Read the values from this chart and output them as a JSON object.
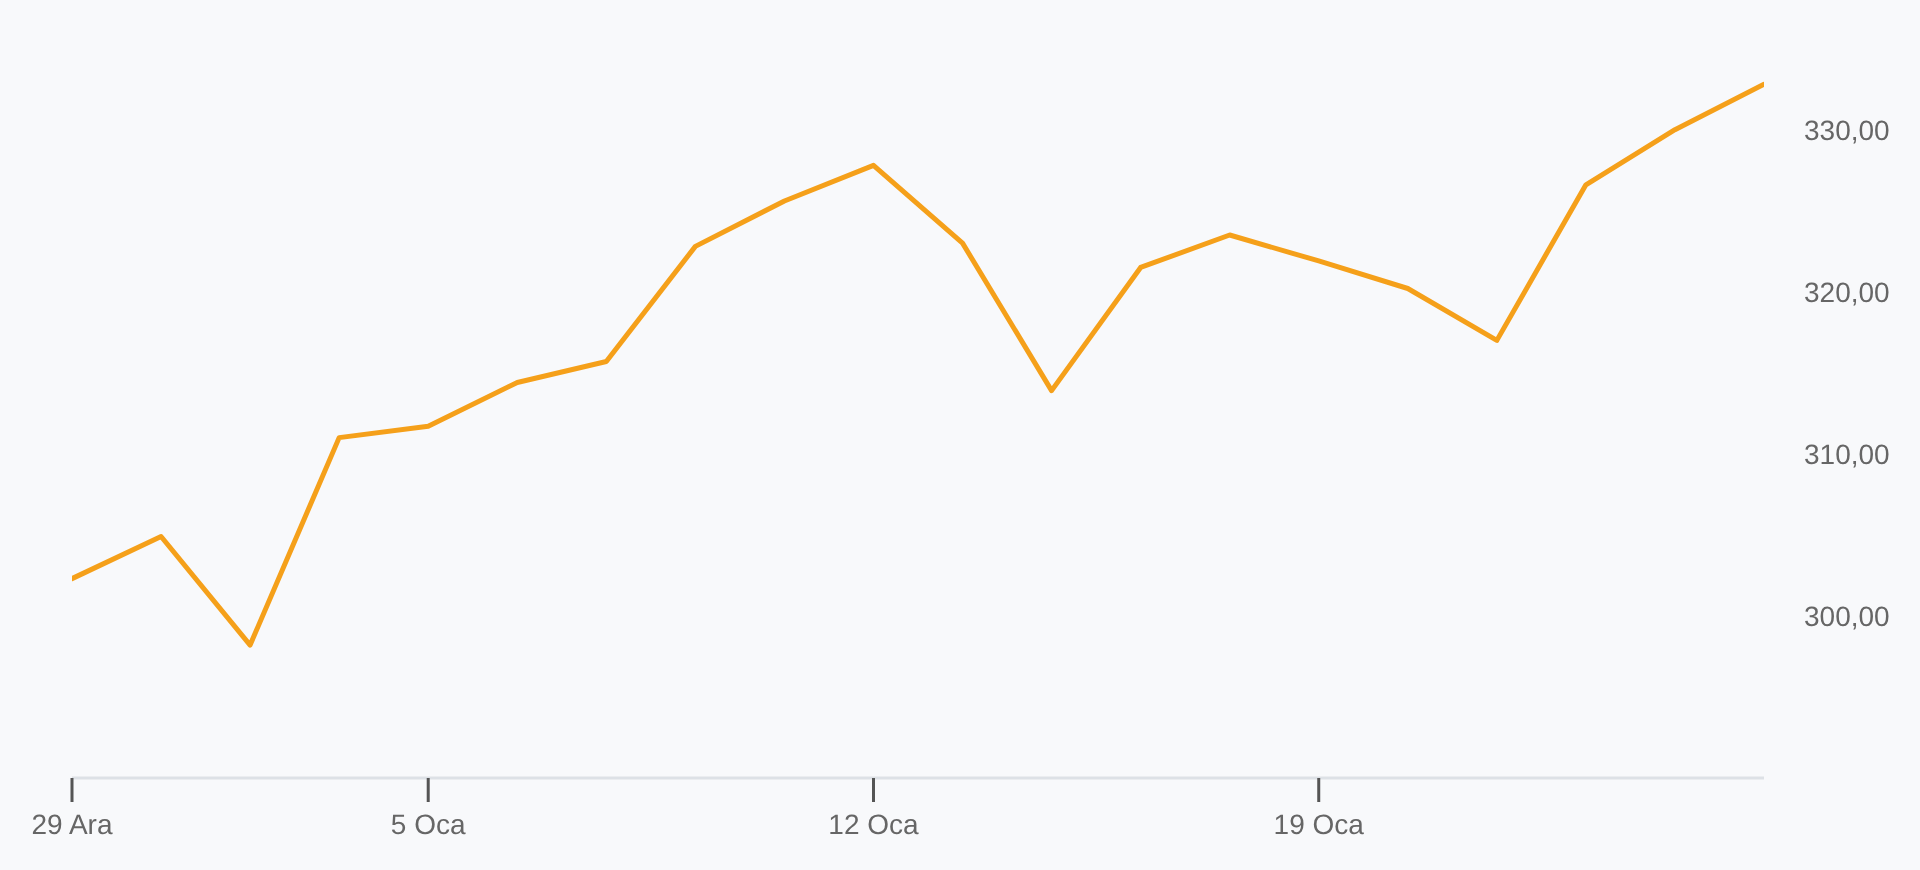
{
  "chart_data": {
    "type": "line",
    "categories": [
      "29 Ara",
      null,
      null,
      null,
      "5 Oca",
      null,
      null,
      null,
      null,
      "12 Oca",
      null,
      null,
      null,
      null,
      "19 Oca",
      null,
      null,
      null,
      null,
      null
    ],
    "series": [
      {
        "color": "#f5a01a",
        "values": [
          302.3,
          304.9,
          298.2,
          311.0,
          311.7,
          314.4,
          315.7,
          322.8,
          325.6,
          327.8,
          323.0,
          313.9,
          321.5,
          323.5,
          321.9,
          320.2,
          317.0,
          326.6,
          330.0,
          332.8
        ]
      }
    ],
    "ylim": [
      290,
      338
    ],
    "yticks": [
      {
        "value": 300,
        "label": "300,00"
      },
      {
        "value": 310,
        "label": "310,00"
      },
      {
        "value": 320,
        "label": "320,00"
      },
      {
        "value": 330,
        "label": "330,00"
      }
    ]
  }
}
